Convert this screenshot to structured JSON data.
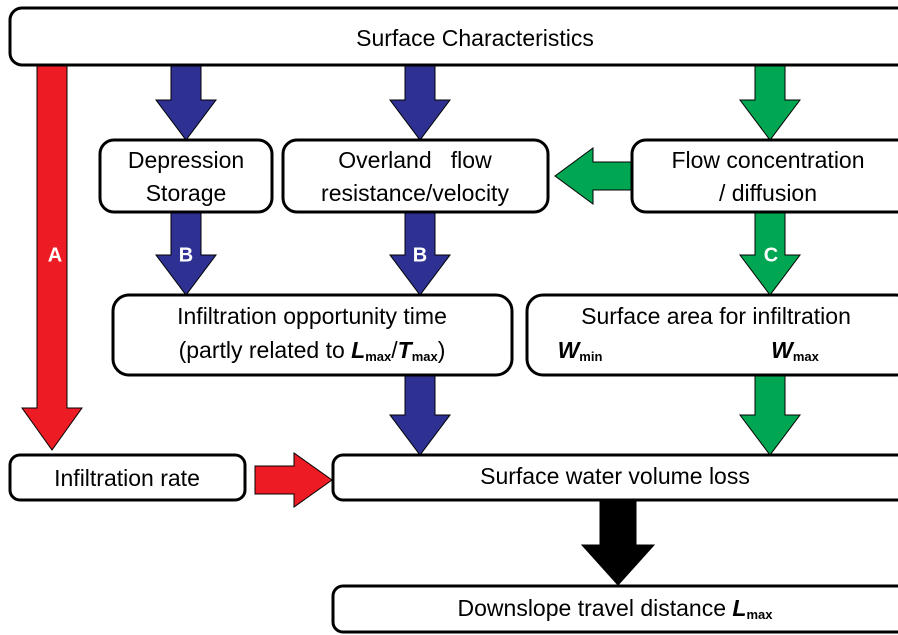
{
  "nodes": {
    "surface": "Surface Characteristics",
    "depression": [
      "Depression",
      "Storage"
    ],
    "overland": [
      "Overland   flow",
      "resistance/velocity"
    ],
    "concentration": [
      "Flow concentration",
      "/ diffusion"
    ],
    "opportunity": {
      "line1": "Infiltration opportunity time",
      "line2": [
        "(partly related to ",
        "L",
        "max",
        "/",
        "T",
        "max",
        ")"
      ]
    },
    "area": {
      "line1": "Surface area for infiltration",
      "wmin": [
        "W",
        "min"
      ],
      "wmax": [
        "W",
        "max"
      ]
    },
    "rate": "Infiltration rate",
    "loss": "Surface water volume loss",
    "distance": [
      "Downslope travel distance ",
      "L",
      "max"
    ]
  },
  "arrow_labels": [
    "A",
    "B",
    "B",
    "C"
  ]
}
